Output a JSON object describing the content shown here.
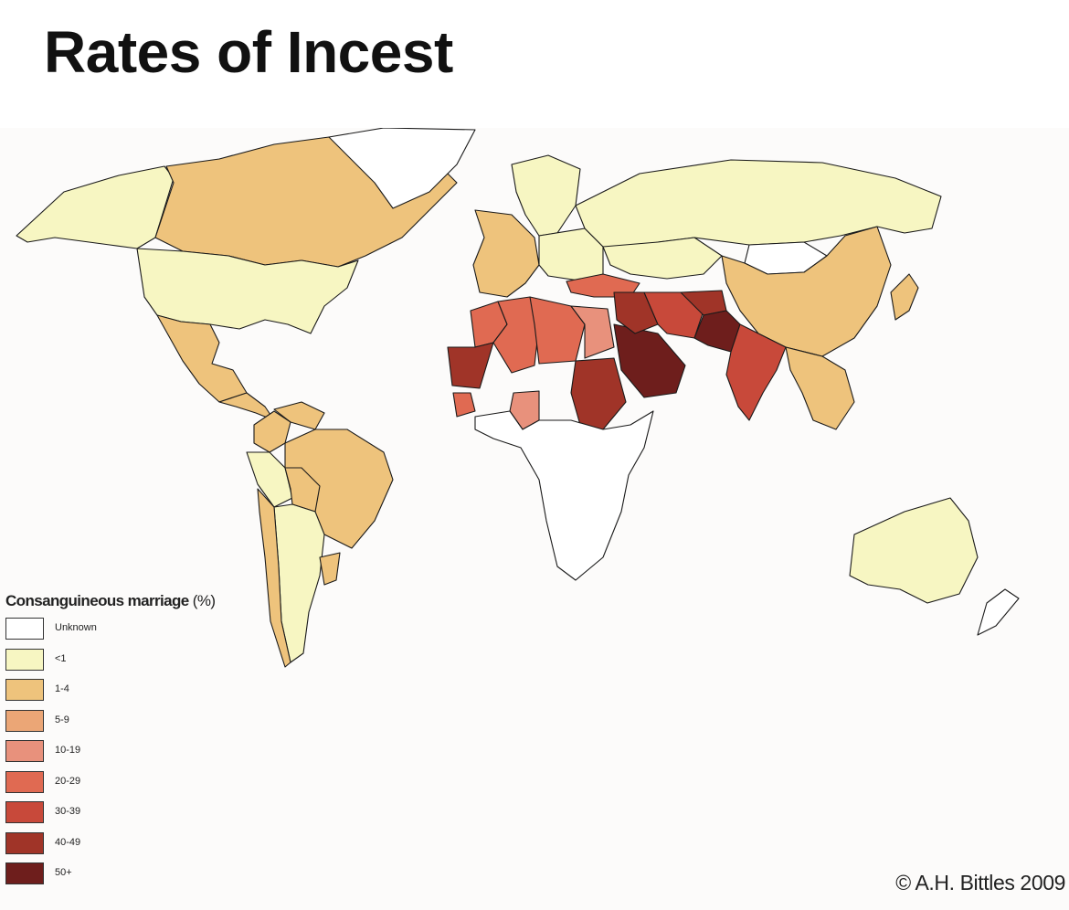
{
  "title": "Rates of Incest",
  "map": {
    "legend": {
      "title": "Consanguineous marriage",
      "unit": "(%)",
      "classes": [
        {
          "label": "Unknown",
          "color": "#ffffff"
        },
        {
          "label": "<1",
          "color": "#f7f6c2"
        },
        {
          "label": "1-4",
          "color": "#eec37c"
        },
        {
          "label": "5-9",
          "color": "#eba676"
        },
        {
          "label": "10-19",
          "color": "#e8917c"
        },
        {
          "label": "20-29",
          "color": "#e06a52"
        },
        {
          "label": "30-39",
          "color": "#c8493a"
        },
        {
          "label": "40-49",
          "color": "#a03428"
        },
        {
          "label": "50+",
          "color": "#6e1e1c"
        }
      ]
    },
    "credit": "© A.H. Bittles 2009",
    "regions": [
      {
        "name": "Alaska",
        "class": "<1"
      },
      {
        "name": "Canada",
        "class": "1-4"
      },
      {
        "name": "United States",
        "class": "<1"
      },
      {
        "name": "Mexico",
        "class": "1-4"
      },
      {
        "name": "Central America",
        "class": "1-4"
      },
      {
        "name": "Brazil",
        "class": "1-4"
      },
      {
        "name": "Venezuela",
        "class": "1-4"
      },
      {
        "name": "Colombia",
        "class": "1-4"
      },
      {
        "name": "Peru",
        "class": "<1"
      },
      {
        "name": "Bolivia",
        "class": "1-4"
      },
      {
        "name": "Argentina",
        "class": "<1"
      },
      {
        "name": "Chile",
        "class": "1-4"
      },
      {
        "name": "Uruguay",
        "class": "1-4"
      },
      {
        "name": "Greenland",
        "class": "Unknown"
      },
      {
        "name": "Scandinavia",
        "class": "<1"
      },
      {
        "name": "Western Europe",
        "class": "1-4"
      },
      {
        "name": "Eastern Europe",
        "class": "<1"
      },
      {
        "name": "Russia",
        "class": "<1"
      },
      {
        "name": "Kazakhstan",
        "class": "<1"
      },
      {
        "name": "Mongolia",
        "class": "Unknown"
      },
      {
        "name": "China",
        "class": "1-4"
      },
      {
        "name": "Japan",
        "class": "1-4"
      },
      {
        "name": "Turkey",
        "class": "20-29"
      },
      {
        "name": "Morocco",
        "class": "20-29"
      },
      {
        "name": "Algeria",
        "class": "20-29"
      },
      {
        "name": "Libya",
        "class": "20-29"
      },
      {
        "name": "Egypt",
        "class": "10-19"
      },
      {
        "name": "Mauritania",
        "class": "40-49"
      },
      {
        "name": "Sudan",
        "class": "40-49"
      },
      {
        "name": "Nigeria",
        "class": "10-19"
      },
      {
        "name": "Guinea",
        "class": "20-29"
      },
      {
        "name": "Saudi Arabia",
        "class": "50+"
      },
      {
        "name": "Iraq",
        "class": "40-49"
      },
      {
        "name": "Iran",
        "class": "30-39"
      },
      {
        "name": "Afghanistan",
        "class": "40-49"
      },
      {
        "name": "Pakistan",
        "class": "50+"
      },
      {
        "name": "India",
        "class": "30-39"
      },
      {
        "name": "Southeast Asia",
        "class": "1-4"
      },
      {
        "name": "Australia",
        "class": "<1"
      },
      {
        "name": "New Zealand",
        "class": "Unknown"
      },
      {
        "name": "Sub-Saharan Africa",
        "class": "Unknown"
      }
    ]
  }
}
